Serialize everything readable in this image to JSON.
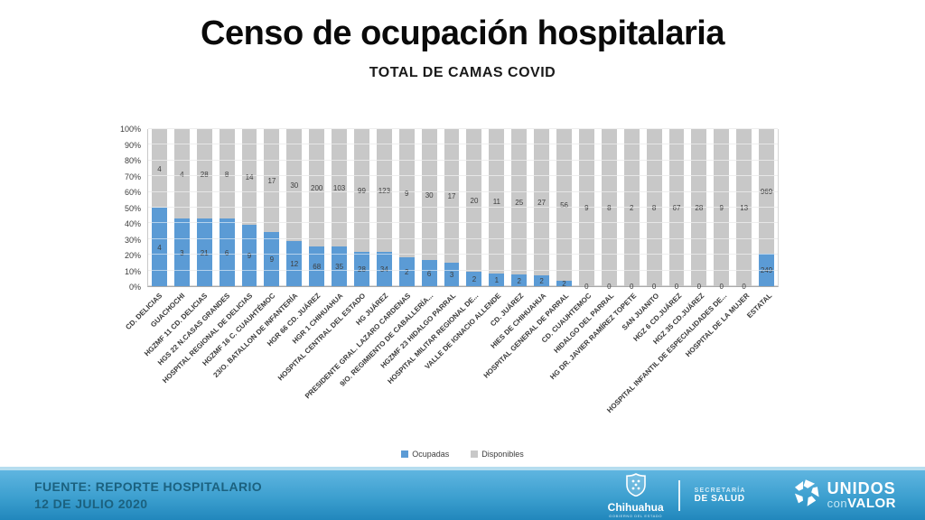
{
  "chart_data": {
    "type": "bar",
    "variant": "stacked-100-percent",
    "title": "Censo de ocupación hospitalaria",
    "subtitle": "TOTAL DE CAMAS COVID",
    "categories": [
      "CD. DELICIAS",
      "GUACHOCHI",
      "HGZMF 11 CD. DELICIAS",
      "HGS 22 N.CASAS GRANDES",
      "HOSPITAL REGIONAL DE DELICIAS",
      "HGZMF 16 C. CUAUHTÉMOC",
      "23/O. BATALLON DE INFANTERÍA",
      "HGR 66 CD. JUÁREZ",
      "HGR 1 CHIHUAHUA",
      "HOSPITAL CENTRAL DEL ESTADO",
      "HG JUÁREZ",
      "PRESIDENTE GRAL. LAZARO CARDENAS",
      "9/O. REGIMIENTO DE CABALLERÍA...",
      "HGZMF 23 HIDALGO PARRAL",
      "HOSPITAL MILITAR REGIONAL DE...",
      "VALLE DE IGNACIO ALLENDE",
      "CD. JUÁREZ",
      "HIES DE CHIHUAHUA",
      "HOSPITAL GENERAL DE PARRAL",
      "CD. CUAUHTEMOC",
      "HIDALGO DEL PARRAL",
      "HG DR. JAVIER RAMÍREZ TOPETE",
      "SAN JUANITO",
      "HGZ 6 CD.JUÁREZ",
      "HGZ 35 CD.JUÁREZ",
      "HOSPITAL INFANTIL DE ESPECIALIDADES DE...",
      "HOSPITAL DE LA MUJER",
      "ESTATAL"
    ],
    "series": [
      {
        "name": "Ocupadas",
        "color": "#5b9bd5",
        "values": [
          4,
          3,
          21,
          6,
          9,
          9,
          12,
          68,
          35,
          28,
          34,
          2,
          6,
          3,
          2,
          1,
          2,
          2,
          2,
          0,
          0,
          0,
          0,
          0,
          0,
          0,
          0,
          249
        ]
      },
      {
        "name": "Disponibles",
        "color": "#c8c8c8",
        "values": [
          4,
          4,
          28,
          8,
          14,
          17,
          30,
          200,
          103,
          99,
          123,
          9,
          30,
          17,
          20,
          11,
          25,
          27,
          56,
          9,
          8,
          2,
          8,
          67,
          28,
          9,
          13,
          969
        ]
      }
    ],
    "xlabel": "",
    "ylabel": "",
    "ylim": [
      0,
      100
    ],
    "y_ticks": [
      "0%",
      "10%",
      "20%",
      "30%",
      "40%",
      "50%",
      "60%",
      "70%",
      "80%",
      "90%",
      "100%"
    ],
    "grid": true,
    "legend_position": "bottom"
  },
  "footer": {
    "source_line1": "FUENTE: REPORTE HOSPITALARIO",
    "source_line2": "12 DE JULIO 2020",
    "chihuahua_name": "Chihuahua",
    "chihuahua_sub": "GOBIERNO DEL ESTADO",
    "secretaria_line1": "SECRETARÍA",
    "secretaria_line2": "DE SALUD",
    "unidos_line1": "UNIDOS",
    "unidos_line2a": "con",
    "unidos_line2b": "VALOR"
  },
  "colors": {
    "occupied": "#5b9bd5",
    "available": "#c8c8c8",
    "footer_band_top": "#5fb5e0",
    "footer_band_bottom": "#2187bc",
    "footer_text": "#1b617f",
    "footer_topline": "#b5ddef"
  }
}
